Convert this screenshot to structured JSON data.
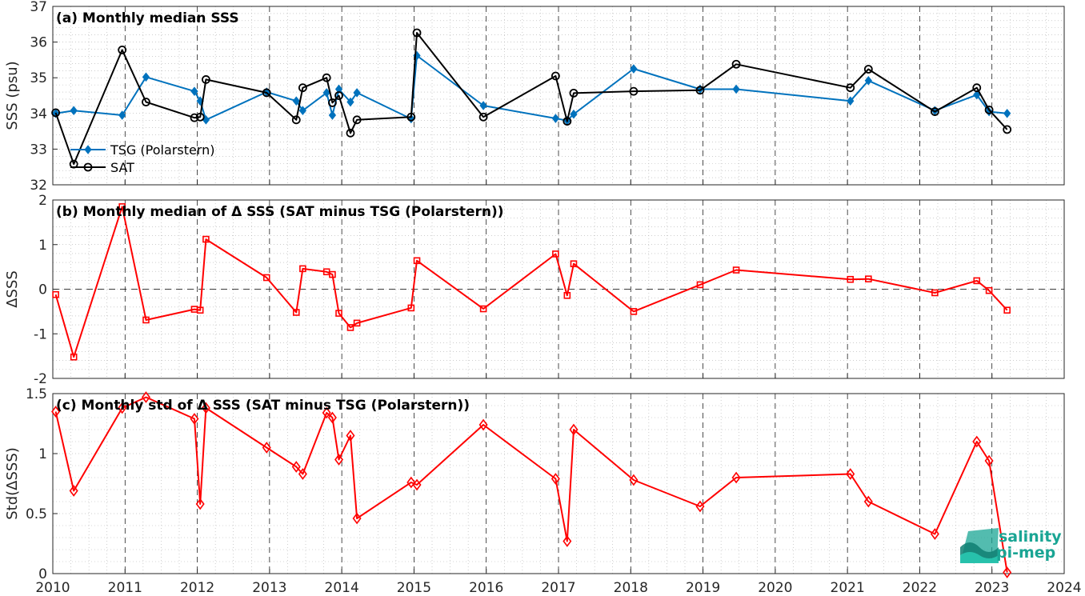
{
  "colors": {
    "tsg": "#0072BD",
    "sat": "#000000",
    "delta": "#FF0000",
    "grid_major": "#000000",
    "grid_minor": "#b0b0b0",
    "logo": "#1aa594"
  },
  "x_axis": {
    "ticks": [
      2010,
      2011,
      2012,
      2013,
      2014,
      2015,
      2016,
      2017,
      2018,
      2019,
      2020,
      2021,
      2022,
      2023,
      2024
    ],
    "xlim": [
      2010,
      2024
    ]
  },
  "logo": {
    "line1": "salinity",
    "line2": "pi-mep"
  },
  "chart_data": [
    {
      "type": "line",
      "title": "(a) Monthly median SSS",
      "ylabel": "SSS (psu)",
      "ylim": [
        32,
        37
      ],
      "yticks": [
        32,
        33,
        34,
        35,
        36,
        37
      ],
      "legend": "bottom-left",
      "grid": true,
      "series": [
        {
          "name": "TSG (Polarstern)",
          "marker": "diamond-filled",
          "x": [
            2010.04,
            2010.29,
            2010.96,
            2011.29,
            2011.96,
            2012.04,
            2012.12,
            2012.96,
            2013.37,
            2013.46,
            2013.79,
            2013.87,
            2013.96,
            2014.12,
            2014.21,
            2014.96,
            2015.04,
            2015.96,
            2016.96,
            2017.12,
            2017.21,
            2018.04,
            2018.96,
            2019.46,
            2021.04,
            2021.29,
            2022.21,
            2022.79,
            2022.96,
            2023.21
          ],
          "y": [
            34.0,
            34.08,
            33.95,
            35.02,
            34.62,
            34.35,
            33.82,
            34.6,
            34.35,
            34.08,
            34.58,
            33.95,
            34.68,
            34.32,
            34.58,
            33.85,
            35.62,
            34.22,
            33.86,
            33.8,
            33.98,
            35.25,
            34.68,
            34.68,
            34.35,
            34.92,
            34.08,
            34.52,
            34.05,
            34.0
          ]
        },
        {
          "name": "SAT",
          "marker": "circle-open",
          "x": [
            2010.04,
            2010.29,
            2010.96,
            2011.29,
            2011.96,
            2012.04,
            2012.12,
            2012.96,
            2013.37,
            2013.46,
            2013.79,
            2013.87,
            2013.96,
            2014.12,
            2014.21,
            2014.96,
            2015.04,
            2015.96,
            2016.96,
            2017.12,
            2017.21,
            2018.04,
            2018.96,
            2019.46,
            2021.04,
            2021.29,
            2022.21,
            2022.79,
            2022.96,
            2023.21
          ],
          "y": [
            34.02,
            32.58,
            35.78,
            34.32,
            33.88,
            33.9,
            34.95,
            34.58,
            33.82,
            34.72,
            35.0,
            34.3,
            34.5,
            33.45,
            33.82,
            33.9,
            36.26,
            33.9,
            35.05,
            33.78,
            34.57,
            34.62,
            34.65,
            35.38,
            34.72,
            35.24,
            34.05,
            34.72,
            34.1,
            33.55
          ]
        }
      ]
    },
    {
      "type": "line",
      "title": "(b) Monthly median of Δ SSS (SAT minus TSG (Polarstern))",
      "ylabel": "ΔSSS",
      "ylim": [
        -2,
        2
      ],
      "yticks": [
        -2,
        -1,
        0,
        1,
        2
      ],
      "zero_line": true,
      "grid": true,
      "series": [
        {
          "marker": "square-open",
          "x": [
            2010.04,
            2010.29,
            2010.96,
            2011.29,
            2011.96,
            2012.04,
            2012.12,
            2012.96,
            2013.37,
            2013.46,
            2013.79,
            2013.87,
            2013.96,
            2014.12,
            2014.21,
            2014.96,
            2015.04,
            2015.96,
            2016.96,
            2017.12,
            2017.21,
            2018.04,
            2018.96,
            2019.46,
            2021.04,
            2021.29,
            2022.21,
            2022.79,
            2022.96,
            2023.21
          ],
          "y": [
            -0.12,
            -1.52,
            1.85,
            -0.69,
            -0.45,
            -0.47,
            1.12,
            0.26,
            -0.52,
            0.46,
            0.39,
            0.33,
            -0.54,
            -0.86,
            -0.76,
            -0.42,
            0.64,
            -0.44,
            0.79,
            -0.14,
            0.57,
            -0.5,
            0.1,
            0.43,
            0.22,
            0.23,
            -0.08,
            0.19,
            -0.03,
            -0.47
          ]
        }
      ]
    },
    {
      "type": "line",
      "title": "(c) Monthly std of Δ SSS (SAT minus TSG (Polarstern))",
      "ylabel": "Std(ΔSSS)",
      "ylim": [
        0,
        1.5
      ],
      "yticks": [
        0,
        0.5,
        1,
        1.5
      ],
      "grid": true,
      "series": [
        {
          "marker": "diamond-open",
          "x": [
            2010.04,
            2010.29,
            2010.96,
            2011.29,
            2011.96,
            2012.04,
            2012.12,
            2012.96,
            2013.37,
            2013.46,
            2013.79,
            2013.87,
            2013.96,
            2014.12,
            2014.21,
            2014.96,
            2015.04,
            2015.96,
            2016.96,
            2017.12,
            2017.21,
            2018.04,
            2018.96,
            2019.46,
            2021.04,
            2021.29,
            2022.21,
            2022.79,
            2022.96,
            2023.21
          ],
          "y": [
            1.35,
            0.69,
            1.38,
            1.47,
            1.29,
            0.58,
            1.38,
            1.05,
            0.89,
            0.83,
            1.34,
            1.3,
            0.95,
            1.15,
            0.46,
            0.76,
            0.74,
            1.24,
            0.79,
            0.27,
            1.2,
            0.78,
            0.56,
            0.8,
            0.83,
            0.6,
            0.33,
            1.1,
            0.94,
            0.01
          ]
        }
      ]
    }
  ]
}
